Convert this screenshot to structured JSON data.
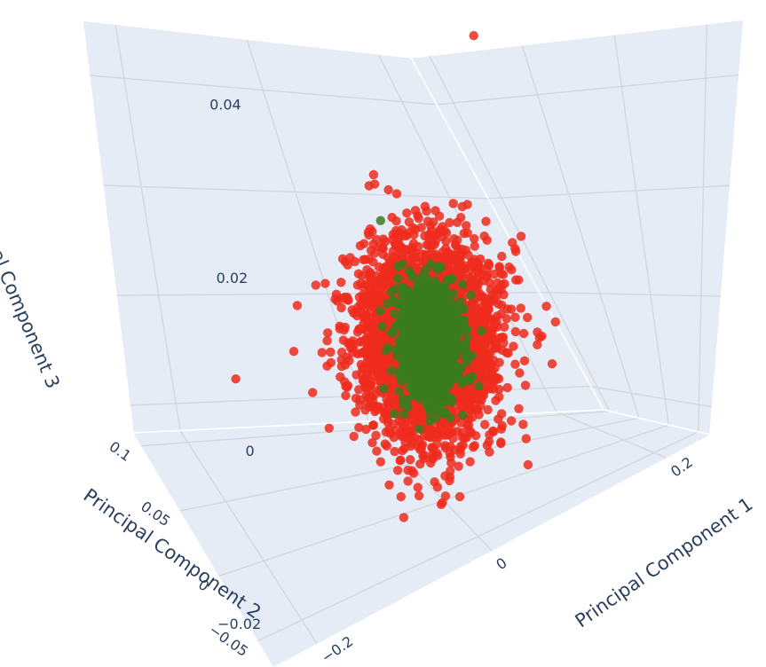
{
  "chart_data": {
    "type": "scatter3d",
    "title": "",
    "axes": {
      "x": {
        "label": "Principal Component 1",
        "range": [
          -0.25,
          0.25
        ],
        "ticks": [
          {
            "value": -0.2,
            "label": "−0.2"
          },
          {
            "value": 0,
            "label": "0"
          },
          {
            "value": 0.2,
            "label": "0.2"
          }
        ]
      },
      "y": {
        "label": "Principal Component 2",
        "range": [
          -0.07,
          0.11
        ],
        "ticks": [
          {
            "value": -0.05,
            "label": "−0.05"
          },
          {
            "value": 0,
            "label": "0"
          },
          {
            "value": 0.05,
            "label": "0.05"
          },
          {
            "value": 0.1,
            "label": "0.1"
          }
        ]
      },
      "z": {
        "label": "Principal Component 3",
        "range": [
          -0.025,
          0.05
        ],
        "ticks": [
          {
            "value": -0.02,
            "label": "−0.02"
          },
          {
            "value": 0,
            "label": "0"
          },
          {
            "value": 0.02,
            "label": "0.02"
          },
          {
            "value": 0.04,
            "label": "0.04"
          }
        ]
      }
    },
    "grid": true,
    "background": "#e5ecf6",
    "series": [
      {
        "color": "#ef2b1d",
        "point_count": 3500,
        "spread": {
          "x": 0.035,
          "y": 0.012,
          "z": 0.0075
        },
        "outliers": [
          {
            "x": 0.02,
            "y": -0.04,
            "z": 0.048
          },
          {
            "x": -0.16,
            "y": -0.01,
            "z": 0.004
          },
          {
            "x": -0.2,
            "y": 0.02,
            "z": -0.002
          },
          {
            "x": 0.1,
            "y": -0.04,
            "z": 0.002
          },
          {
            "x": -0.09,
            "y": 0.03,
            "z": 0.009
          },
          {
            "x": 0.06,
            "y": 0.05,
            "z": -0.012
          },
          {
            "x": -0.02,
            "y": -0.035,
            "z": 0.019
          },
          {
            "x": 0.1,
            "y": -0.035,
            "z": -0.005
          }
        ]
      },
      {
        "color": "#3a7d1e",
        "point_count": 1100,
        "spread": {
          "x": 0.016,
          "y": 0.006,
          "z": 0.0045
        },
        "outliers": []
      }
    ]
  }
}
